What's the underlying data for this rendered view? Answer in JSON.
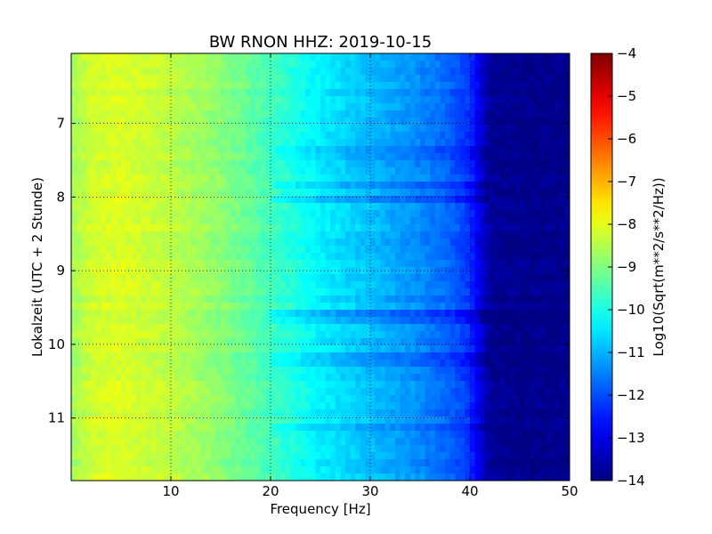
{
  "chart_data": {
    "type": "heatmap",
    "title": "BW RNON HHZ: 2019-10-15",
    "xlabel": "Frequency [Hz]",
    "ylabel": "Lokalzeit (UTC + 2 Stunde)",
    "xlim": [
      0,
      50
    ],
    "ylim": [
      6.05,
      11.85
    ],
    "y_inverted": true,
    "x_ticks": [
      10,
      20,
      30,
      40,
      50
    ],
    "x_tick_labels": [
      "10",
      "20",
      "30",
      "40",
      "50"
    ],
    "y_ticks": [
      7,
      8,
      9,
      10,
      11
    ],
    "y_tick_labels": [
      "7",
      "8",
      "9",
      "10",
      "11"
    ],
    "grid": true,
    "colormap": "jet",
    "colorbar": {
      "label": "Log10(Sqrt(m**2/s**2/Hz))",
      "range": [
        -14,
        -4
      ],
      "ticks": [
        -4,
        -5,
        -6,
        -7,
        -8,
        -9,
        -10,
        -11,
        -12,
        -13,
        -14
      ],
      "tick_labels": [
        "−4",
        "−5",
        "−6",
        "−7",
        "−8",
        "−9",
        "−10",
        "−11",
        "−12",
        "−13",
        "−14"
      ]
    },
    "spectrum_profile": {
      "frequency_hz": [
        0,
        2,
        5,
        10,
        15,
        20,
        25,
        30,
        35,
        38,
        40,
        42,
        45,
        50
      ],
      "log10_value": [
        -8.7,
        -8.2,
        -8.1,
        -8.4,
        -8.9,
        -9.6,
        -10.4,
        -10.9,
        -11.4,
        -11.8,
        -12.3,
        -13.8,
        -13.9,
        -13.9
      ]
    },
    "band_rows": [
      {
        "time": 7.85,
        "delta": -0.4
      },
      {
        "time": 8.05,
        "delta": -0.5
      },
      {
        "time": 7.35,
        "delta": -0.3
      },
      {
        "time": 7.45,
        "delta": -0.3
      },
      {
        "time": 9.6,
        "delta": -0.5
      },
      {
        "time": 9.7,
        "delta": -0.3
      },
      {
        "time": 10.2,
        "delta": -0.3
      },
      {
        "time": 11.1,
        "delta": -0.3
      }
    ]
  }
}
